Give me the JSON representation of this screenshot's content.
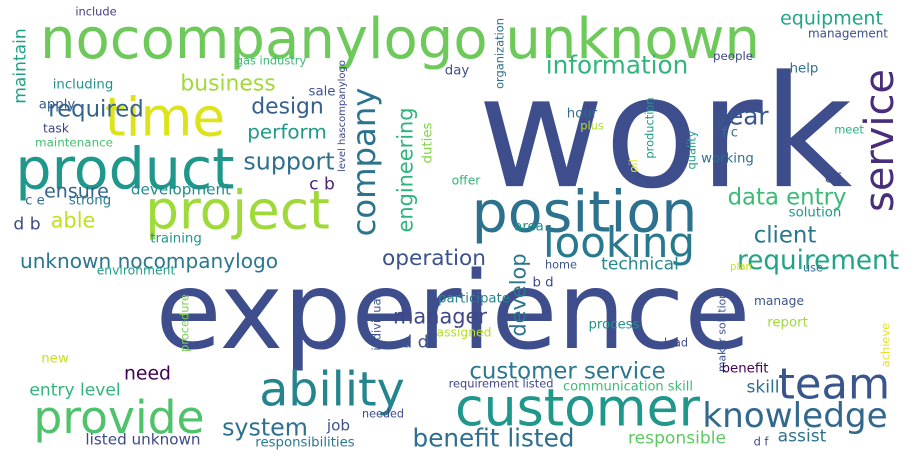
{
  "words": [
    {
      "text": "experience",
      "color": "#3e4d8b"
    },
    {
      "text": "work",
      "color": "#3e4d8b"
    },
    {
      "text": "nocompanylogo unknown",
      "color": "#6cc95a"
    },
    {
      "text": "customer",
      "color": "#1f978b"
    },
    {
      "text": "position",
      "color": "#2c728e"
    },
    {
      "text": "project",
      "color": "#9fda3a"
    },
    {
      "text": "product",
      "color": "#1f988b"
    },
    {
      "text": "ability",
      "color": "#25858e"
    },
    {
      "text": "provide",
      "color": "#4ec36b"
    },
    {
      "text": "time",
      "color": "#dde318"
    },
    {
      "text": "company",
      "color": "#2c738e"
    },
    {
      "text": "service",
      "color": "#472d7b"
    },
    {
      "text": "team",
      "color": "#39568c"
    },
    {
      "text": "looking",
      "color": "#29798e"
    },
    {
      "text": "knowledge",
      "color": "#31688e"
    },
    {
      "text": "benefit listed",
      "color": "#2e6e8e"
    },
    {
      "text": "customer service",
      "color": "#2a768e"
    },
    {
      "text": "unknown nocompanylogo",
      "color": "#2a788e"
    },
    {
      "text": "engineering",
      "color": "#2fb47c"
    },
    {
      "text": "requirement",
      "color": "#20a386"
    },
    {
      "text": "information",
      "color": "#31b57b"
    },
    {
      "text": "business",
      "color": "#a0da39"
    },
    {
      "text": "required",
      "color": "#33638d"
    },
    {
      "text": "design",
      "color": "#355f8d"
    },
    {
      "text": "data entry",
      "color": "#3bbb75"
    },
    {
      "text": "equipment",
      "color": "#21a585"
    },
    {
      "text": "client",
      "color": "#2a768e"
    },
    {
      "text": "year",
      "color": "#39568c"
    },
    {
      "text": "perform",
      "color": "#1f9a8a"
    },
    {
      "text": "support",
      "color": "#2d708e"
    },
    {
      "text": "operation",
      "color": "#3b528b"
    },
    {
      "text": "need",
      "color": "#440154"
    },
    {
      "text": "system",
      "color": "#2c718e"
    },
    {
      "text": "manager",
      "color": "#3f4788"
    },
    {
      "text": "develop",
      "color": "#2b748e"
    },
    {
      "text": "able",
      "color": "#c2df23"
    },
    {
      "text": "ensure",
      "color": "#33638d"
    },
    {
      "text": "technical",
      "color": "#23898e"
    },
    {
      "text": "listed unknown",
      "color": "#3e4989"
    },
    {
      "text": "responsible",
      "color": "#5ec962"
    },
    {
      "text": "skill",
      "color": "#2e6f8e"
    },
    {
      "text": "assist",
      "color": "#2d708e"
    },
    {
      "text": "job",
      "color": "#3b528b"
    },
    {
      "text": "entry level",
      "color": "#31b57b"
    },
    {
      "text": "development",
      "color": "#228c8d"
    },
    {
      "text": "maintain",
      "color": "#1fa088"
    },
    {
      "text": "c b",
      "color": "#482475"
    },
    {
      "text": "d b",
      "color": "#3e4989"
    },
    {
      "text": "d d",
      "color": "#3b528b"
    },
    {
      "text": "c e",
      "color": "#2d718e"
    },
    {
      "text": "new",
      "color": "#cae11f"
    },
    {
      "text": "strong",
      "color": "#287c8e"
    },
    {
      "text": "working",
      "color": "#2d708e"
    },
    {
      "text": "f c",
      "color": "#2c738e"
    },
    {
      "text": "hour",
      "color": "#2e6e8e"
    },
    {
      "text": "plus",
      "color": "#b5de2b"
    },
    {
      "text": "including",
      "color": "#20928c"
    },
    {
      "text": "apply",
      "color": "#355f8d"
    },
    {
      "text": "task",
      "color": "#414487"
    },
    {
      "text": "maintenance",
      "color": "#46c06f"
    },
    {
      "text": "include",
      "color": "#433e85"
    },
    {
      "text": "gas industry",
      "color": "#3bbb75"
    },
    {
      "text": "sale",
      "color": "#3b528b"
    },
    {
      "text": "level hascompanylogo",
      "color": "#3e4989"
    },
    {
      "text": "duties",
      "color": "#84d44b"
    },
    {
      "text": "day",
      "color": "#3b528b"
    },
    {
      "text": "organization",
      "color": "#2d708e"
    },
    {
      "text": "offer",
      "color": "#35b779"
    },
    {
      "text": "oil",
      "color": "#dde318"
    },
    {
      "text": "production",
      "color": "#1f9a8a"
    },
    {
      "text": "quality",
      "color": "#1fa188"
    },
    {
      "text": "management",
      "color": "#3b528b"
    },
    {
      "text": "people",
      "color": "#3e4989"
    },
    {
      "text": "help",
      "color": "#2d708e"
    },
    {
      "text": "meet",
      "color": "#2ab07f"
    },
    {
      "text": "c f",
      "color": "#3e4989"
    },
    {
      "text": "solution",
      "color": "#1f988b"
    },
    {
      "text": "area",
      "color": "#20928c"
    },
    {
      "text": "plan",
      "color": "#c8e020"
    },
    {
      "text": "use",
      "color": "#2e6e8e"
    },
    {
      "text": "home",
      "color": "#3b528b"
    },
    {
      "text": "b d",
      "color": "#3e4989"
    },
    {
      "text": "training",
      "color": "#1f988b"
    },
    {
      "text": "environment",
      "color": "#1f9f88"
    },
    {
      "text": "procedure",
      "color": "#7ad151"
    },
    {
      "text": "individual",
      "color": "#3b528b"
    },
    {
      "text": "participate",
      "color": "#25848e"
    },
    {
      "text": "assigned",
      "color": "#b5de2b"
    },
    {
      "text": "process",
      "color": "#20928c"
    },
    {
      "text": "lead",
      "color": "#3e4989"
    },
    {
      "text": "maker solution",
      "color": "#3b528b"
    },
    {
      "text": "manage",
      "color": "#3b528b"
    },
    {
      "text": "report",
      "color": "#9fda3a"
    },
    {
      "text": "benefit",
      "color": "#440154"
    },
    {
      "text": "achieve",
      "color": "#e5e419"
    },
    {
      "text": "requirement listed",
      "color": "#3e4989"
    },
    {
      "text": "communication skill",
      "color": "#3bbb75"
    },
    {
      "text": "needed",
      "color": "#3e4989"
    },
    {
      "text": "responsibilities",
      "color": "#2a788e"
    },
    {
      "text": "d f",
      "color": "#3e4989"
    }
  ]
}
